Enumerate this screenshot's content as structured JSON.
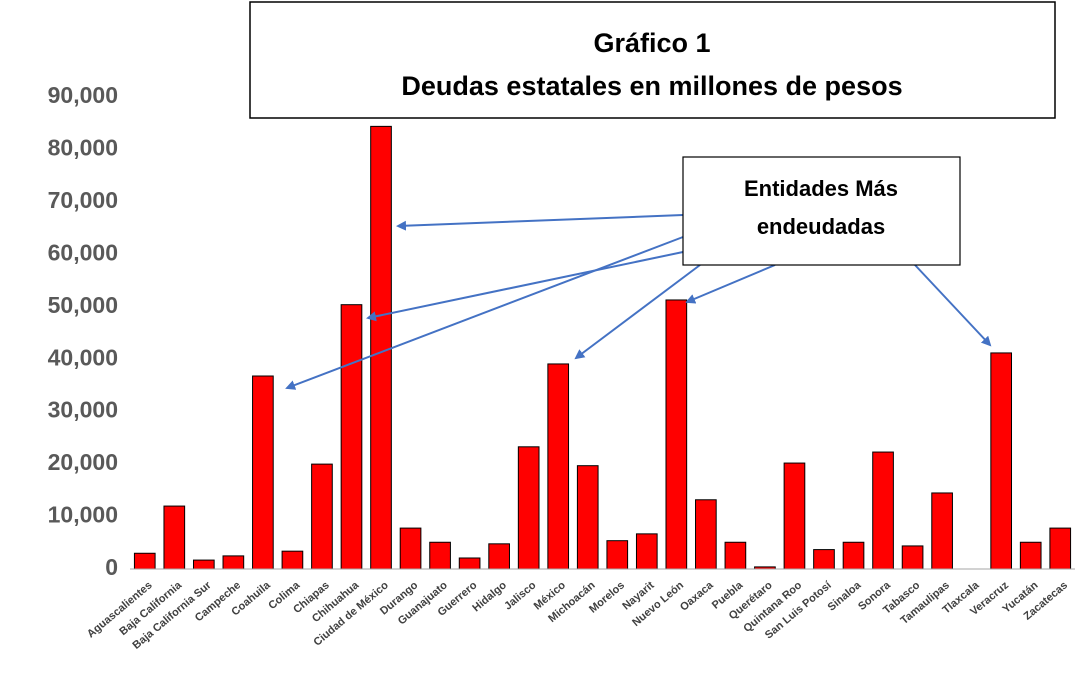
{
  "chart_data": {
    "type": "bar",
    "title": "Gráfico 1",
    "subtitle": "Deudas estatales en millones de pesos",
    "annotation": [
      "Entidades Más",
      "endeudadas"
    ],
    "categories": [
      "Aguascalientes",
      "Baja California",
      "Baja California Sur",
      "Campeche",
      "Coahuila",
      "Colima",
      "Chiapas",
      "Chihuahua",
      "Ciudad de México",
      "Durango",
      "Guanajuato",
      "Guerrero",
      "Hidalgo",
      "Jalisco",
      "México",
      "Michoacán",
      "Morelos",
      "Nayarit",
      "Nuevo León",
      "Oaxaca",
      "Puebla",
      "Querétaro",
      "Quintana Roo",
      "San Luis Potosí",
      "Sinaloa",
      "Sonora",
      "Tabasco",
      "Tamaulipas",
      "Tlaxcala",
      "Veracruz",
      "Yucatán",
      "Zacatecas"
    ],
    "values": [
      3000,
      12000,
      1700,
      2500,
      36800,
      3400,
      20000,
      50400,
      84400,
      7800,
      5100,
      2100,
      4800,
      23300,
      39100,
      19700,
      5400,
      6700,
      51300,
      13200,
      5100,
      400,
      20200,
      3700,
      5100,
      22300,
      4400,
      14500,
      0,
      41200,
      5100,
      7800
    ],
    "color": "#ff0000",
    "ylim": [
      0,
      90000
    ],
    "yticks": [
      0,
      {
        "value": 10000,
        "label": "10,000"
      },
      {
        "value": 20000,
        "label": "20,000"
      },
      {
        "value": 30000,
        "label": "30,000"
      },
      {
        "value": 40000,
        "label": "40,000"
      },
      {
        "value": 50000,
        "label": "50,000"
      },
      {
        "value": 60000,
        "label": "60,000"
      },
      {
        "value": 70000,
        "label": "70,000"
      },
      {
        "value": 80000,
        "label": "80,000"
      },
      {
        "value": 90000,
        "label": "90,000"
      }
    ],
    "grid": false
  }
}
